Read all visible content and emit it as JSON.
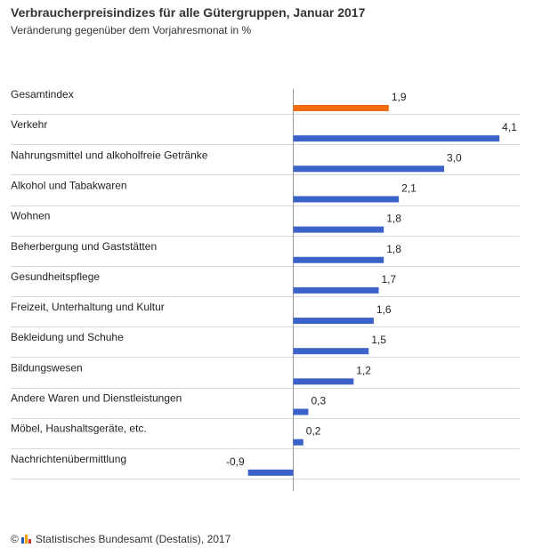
{
  "header": {
    "title": "Verbraucherpreisindizes für alle Gütergruppen, Januar 2017",
    "subtitle": "Veränderung gegenüber dem Vorjahresmonat in %"
  },
  "footer": {
    "copyright_symbol": "©",
    "source": "Statistisches Bundesamt (Destatis), 2017"
  },
  "colors": {
    "highlight_bar": "#f26b0f",
    "bar": "#3a62c9",
    "zero_line": "#999999",
    "gridline": "#d9d9d9",
    "logo": [
      "#2a5db0",
      "#f5a000",
      "#d62b2b"
    ]
  },
  "chart_data": {
    "type": "bar",
    "orientation": "horizontal",
    "title": "Verbraucherpreisindizes für alle Gütergruppen, Januar 2017",
    "subtitle": "Veränderung gegenüber dem Vorjahresmonat in %",
    "xlim": [
      -1.9,
      4.3
    ],
    "grid": true,
    "categories": [
      "Gesamtindex",
      "Verkehr",
      "Nahrungsmittel und alkoholfreie Getränke",
      "Alkohol und Tabakwaren",
      "Wohnen",
      "Beherbergung und Gaststätten",
      "Gesundheitspflege",
      "Freizeit, Unterhaltung und Kultur",
      "Bekleidung und Schuhe",
      "Bildungswesen",
      "Andere Waren und Dienstleistungen",
      "Möbel, Haushaltsgeräte, etc.",
      "Nachrichtenübermittlung"
    ],
    "values": [
      1.9,
      4.1,
      3.0,
      2.1,
      1.8,
      1.8,
      1.7,
      1.6,
      1.5,
      1.2,
      0.3,
      0.2,
      -0.9
    ],
    "value_labels": [
      "1,9",
      "4,1",
      "3,0",
      "2,1",
      "1,8",
      "1,8",
      "1,7",
      "1,6",
      "1,5",
      "1,2",
      "0,3",
      "0,2",
      "-0,9"
    ],
    "highlighted_index": 0
  }
}
